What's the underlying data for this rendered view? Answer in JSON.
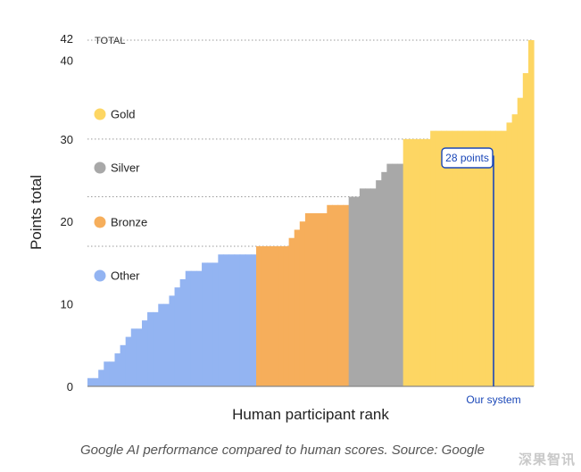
{
  "chart_data": {
    "type": "bar",
    "xlabel": "Human participant rank",
    "ylabel": "Points total",
    "ylim": [
      0,
      42
    ],
    "yticks": [
      "0",
      "10",
      "20",
      "30",
      "40",
      "42"
    ],
    "grid": true,
    "reference_lines": [
      {
        "label": "TOTAL",
        "y": 42
      },
      {
        "label": "",
        "y": 30
      },
      {
        "label": "",
        "y": 23
      },
      {
        "label": "",
        "y": 17
      }
    ],
    "legend": {
      "placement": "left",
      "entries": [
        {
          "name": "Gold",
          "color": "#FDD663"
        },
        {
          "name": "Silver",
          "color": "#A8A8A8"
        },
        {
          "name": "Bronze",
          "color": "#F6AE5B"
        },
        {
          "name": "Other",
          "color": "#93B4F2"
        }
      ]
    },
    "series": [
      {
        "name": "Other",
        "color": "#93B4F2",
        "values": [
          1,
          1,
          2,
          3,
          3,
          4,
          5,
          6,
          7,
          7,
          8,
          9,
          9,
          10,
          10,
          11,
          12,
          13,
          14,
          14,
          14,
          15,
          15,
          15,
          16,
          16,
          16,
          16,
          16,
          16,
          16
        ]
      },
      {
        "name": "Bronze",
        "color": "#F6AE5B",
        "values": [
          17,
          17,
          17,
          17,
          17,
          17,
          18,
          19,
          20,
          21,
          21,
          21,
          21,
          22,
          22,
          22,
          22
        ]
      },
      {
        "name": "Silver",
        "color": "#A8A8A8",
        "values": [
          23,
          23,
          24,
          24,
          24,
          25,
          26,
          27,
          27,
          27
        ]
      },
      {
        "name": "Gold",
        "color": "#FDD663",
        "values": [
          30,
          30,
          30,
          30,
          30,
          31,
          31,
          31,
          31,
          31,
          31,
          31,
          31,
          31,
          31,
          31,
          31,
          31,
          31,
          32,
          33,
          35,
          38,
          42
        ]
      }
    ],
    "annotation": {
      "label": "28 points",
      "value": 28,
      "marker_label": "Our system",
      "color": "#1A47B8"
    }
  },
  "caption": "Google AI performance compared to human scores. Source: Google",
  "watermark": "深果智讯"
}
